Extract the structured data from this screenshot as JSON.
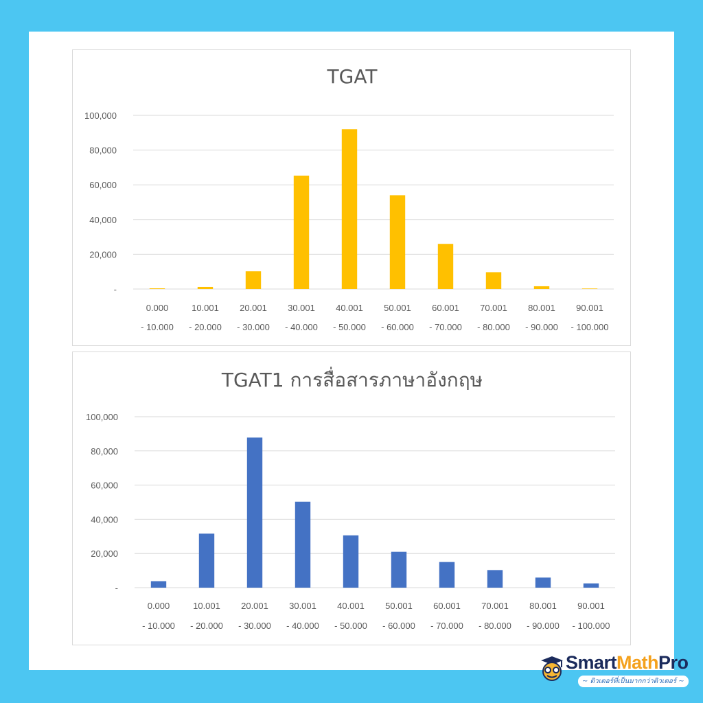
{
  "chart_data": [
    {
      "type": "bar",
      "title": "TGAT",
      "categories": [
        [
          "0.000",
          "- 10.000"
        ],
        [
          "10.001",
          "- 20.000"
        ],
        [
          "20.001",
          "- 30.000"
        ],
        [
          "30.001",
          "- 40.000"
        ],
        [
          "40.001",
          "- 50.000"
        ],
        [
          "50.001",
          "- 60.000"
        ],
        [
          "60.001",
          "- 70.000"
        ],
        [
          "70.001",
          "- 80.000"
        ],
        [
          "80.001",
          "- 90.000"
        ],
        [
          "90.001",
          "- 100.000"
        ]
      ],
      "values": [
        400,
        1200,
        10200,
        65300,
        92000,
        54000,
        26000,
        9700,
        1600,
        300
      ],
      "ylim": [
        0,
        100000
      ],
      "yticks": [
        "-",
        "20,000",
        "40,000",
        "60,000",
        "80,000",
        "100,000"
      ],
      "grid": true,
      "color": "#ffc000"
    },
    {
      "type": "bar",
      "title": "TGAT1 การสื่อสารภาษาอังกฤษ",
      "categories": [
        [
          "0.000",
          "- 10.000"
        ],
        [
          "10.001",
          "- 20.000"
        ],
        [
          "20.001",
          "- 30.000"
        ],
        [
          "30.001",
          "- 40.000"
        ],
        [
          "40.001",
          "- 50.000"
        ],
        [
          "50.001",
          "- 60.000"
        ],
        [
          "60.001",
          "- 70.000"
        ],
        [
          "70.001",
          "- 80.000"
        ],
        [
          "80.001",
          "- 90.000"
        ],
        [
          "90.001",
          "- 100.000"
        ]
      ],
      "values": [
        3800,
        31600,
        87800,
        50300,
        30600,
        21000,
        15000,
        10300,
        5900,
        2500
      ],
      "ylim": [
        0,
        100000
      ],
      "yticks": [
        "-",
        "20,000",
        "40,000",
        "60,000",
        "80,000",
        "100,000"
      ],
      "grid": true,
      "color": "#4472c4"
    }
  ],
  "logo": {
    "word_smart": "Smart",
    "word_math": "Math",
    "word_pro": "Pro",
    "tagline": "~ ติวเตอร์ที่เป็นมากกว่าติวเตอร์ ~"
  }
}
